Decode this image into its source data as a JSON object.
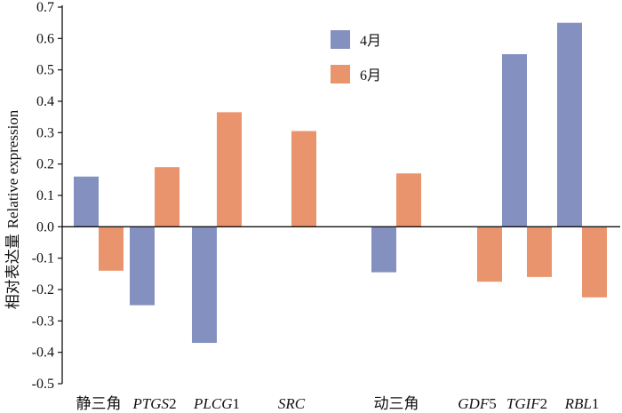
{
  "chart_data": {
    "type": "bar",
    "title": "",
    "xlabel": "",
    "ylabel": "相对表达量 Relative expression",
    "ylabel_zh": "相对表达量",
    "ylabel_en": "Relative expression",
    "ylim": [
      -0.5,
      0.7
    ],
    "yticks": [
      "-0.5",
      "-0.4",
      "-0.3",
      "-0.2",
      "-0.1",
      "0.0",
      "0.1",
      "0.2",
      "0.3",
      "0.4",
      "0.5",
      "0.6",
      "0.7"
    ],
    "categories": [
      {
        "prefix": "",
        "italic": "",
        "suffix": "静三角"
      },
      {
        "prefix": "",
        "italic": "PTGS",
        "suffix": "2"
      },
      {
        "prefix": "",
        "italic": "PLCG",
        "suffix": "1"
      },
      {
        "prefix": "",
        "italic": "SRC",
        "suffix": ""
      },
      {
        "prefix": "",
        "italic": "",
        "suffix": "动三角"
      },
      {
        "prefix": "",
        "italic": "GDF",
        "suffix": "5"
      },
      {
        "prefix": "",
        "italic": "TGIF",
        "suffix": "2"
      },
      {
        "prefix": "",
        "italic": "RBL",
        "suffix": "1"
      }
    ],
    "series": [
      {
        "name": "4月",
        "color": "#8490c0",
        "values": [
          0.16,
          -0.25,
          -0.37,
          null,
          -0.145,
          null,
          0.55,
          0.65
        ]
      },
      {
        "name": "6月",
        "color": "#e9946c",
        "values": [
          -0.14,
          0.19,
          0.365,
          0.305,
          0.17,
          -0.175,
          -0.16,
          -0.225
        ]
      }
    ],
    "legend_position": "top-center",
    "grid": false
  }
}
